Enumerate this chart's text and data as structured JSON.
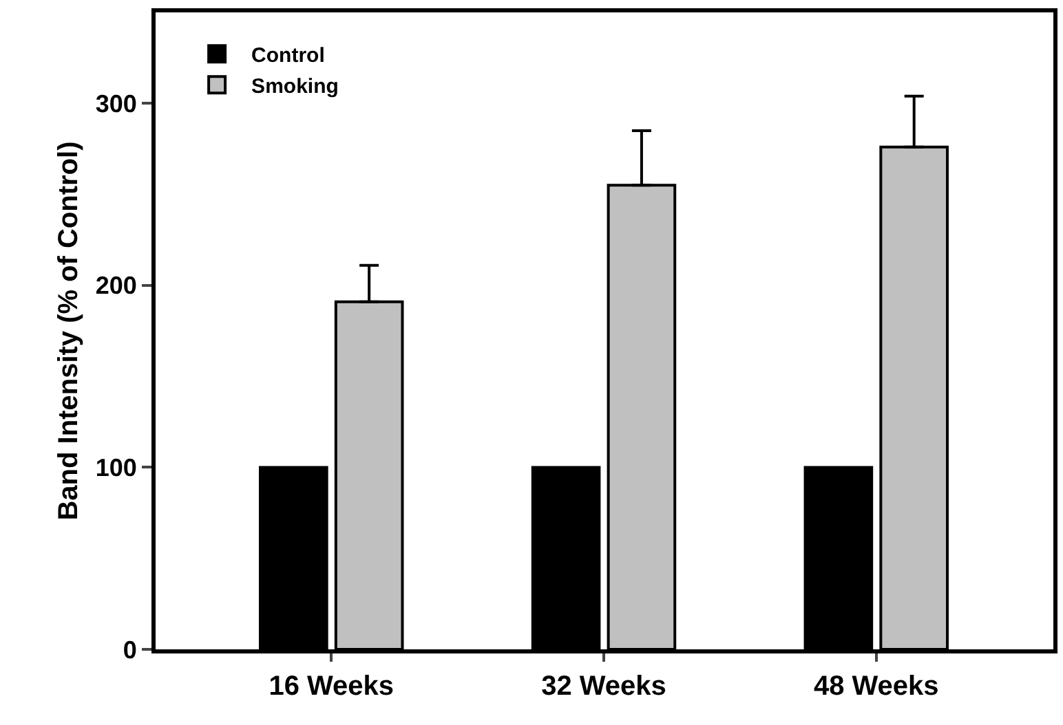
{
  "chart_data": {
    "type": "bar",
    "ylabel": "Band Intensity (% of Control)",
    "categories": [
      "16 Weeks",
      "32 Weeks",
      "48 Weeks"
    ],
    "series": [
      {
        "name": "Control",
        "color": "#000000",
        "values": [
          100,
          100,
          100
        ]
      },
      {
        "name": "Smoking",
        "color": "#c0c0c0",
        "values": [
          191,
          255,
          276
        ],
        "errors": [
          [
            191,
            211
          ],
          [
            255,
            285
          ],
          [
            276,
            304
          ]
        ]
      }
    ],
    "ylim": [
      0,
      350
    ],
    "yticks": [
      0,
      100,
      200,
      300
    ],
    "legend": "top left"
  }
}
